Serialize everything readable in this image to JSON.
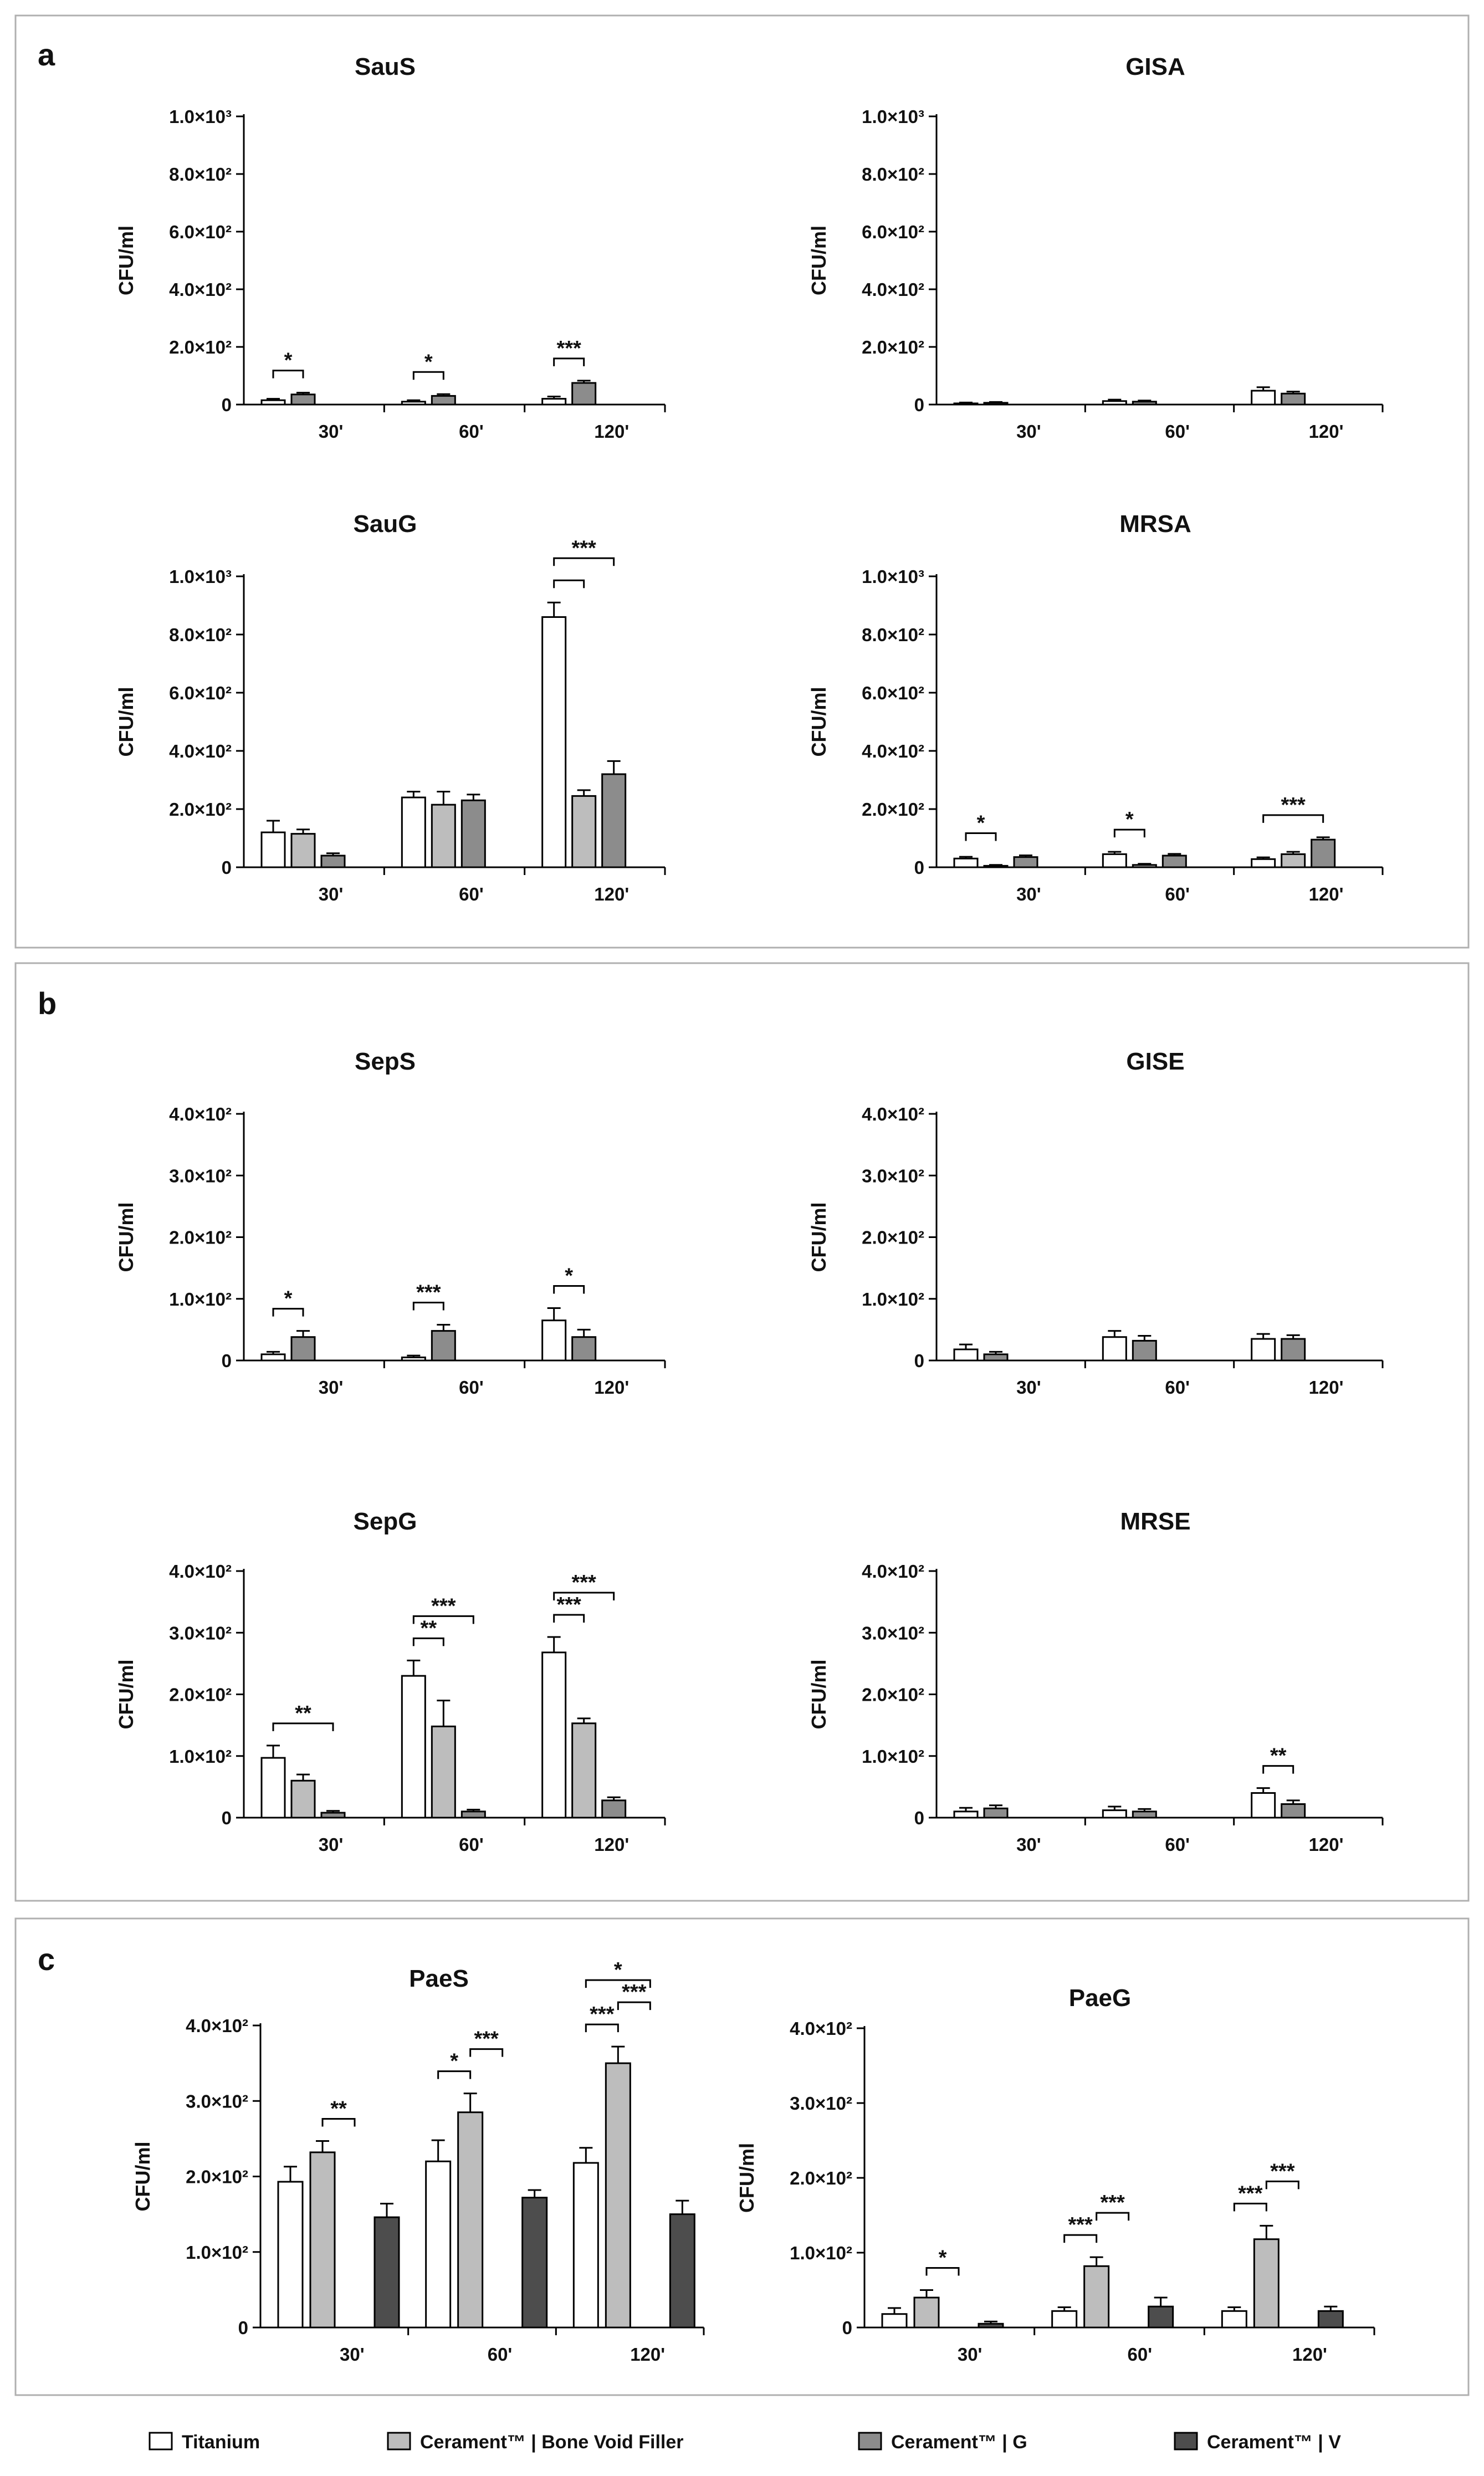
{
  "colors": {
    "titanium": "#ffffff",
    "bone_void_filler": "#bdbdbd",
    "cerament_g": "#8c8c8c",
    "cerament_v": "#4d4d4d"
  },
  "legend": [
    {
      "key": "titanium",
      "label": "Titanium"
    },
    {
      "key": "bone_void_filler",
      "label": "Cerament™ | Bone Void Filler"
    },
    {
      "key": "cerament_g",
      "label": "Cerament™ | G"
    },
    {
      "key": "cerament_v",
      "label": "Cerament™ | V"
    }
  ],
  "panels": [
    {
      "letter": "a"
    },
    {
      "letter": "b"
    },
    {
      "letter": "c"
    }
  ],
  "chart_data": [
    {
      "id": "saus",
      "type": "bar",
      "title": "SauS",
      "ylabel": "CFU/ml",
      "categories": [
        "30'",
        "60'",
        "120'"
      ],
      "ylim": [
        0,
        1000
      ],
      "ytick_labels": [
        "0",
        "2.0×10²",
        "4.0×10²",
        "6.0×10²",
        "8.0×10²",
        "1.0×10³"
      ],
      "series": [
        {
          "name": "Titanium",
          "key": "titanium",
          "values": [
            15,
            10,
            20
          ],
          "errors": [
            5,
            5,
            8
          ]
        },
        {
          "name": "Cerament™ | G",
          "key": "cerament_g",
          "values": [
            35,
            30,
            75
          ],
          "errors": [
            6,
            6,
            8
          ]
        }
      ],
      "significance": [
        {
          "group": 0,
          "from": 0,
          "to": 1,
          "label": "*"
        },
        {
          "group": 1,
          "from": 0,
          "to": 1,
          "label": "*"
        },
        {
          "group": 2,
          "from": 0,
          "to": 1,
          "label": "***"
        }
      ]
    },
    {
      "id": "gisa",
      "type": "bar",
      "title": "GISA",
      "ylabel": "CFU/ml",
      "categories": [
        "30'",
        "60'",
        "120'"
      ],
      "ylim": [
        0,
        1000
      ],
      "ytick_labels": [
        "0",
        "2.0×10²",
        "4.0×10²",
        "6.0×10²",
        "8.0×10²",
        "1.0×10³"
      ],
      "series": [
        {
          "name": "Titanium",
          "key": "titanium",
          "values": [
            4,
            12,
            48
          ],
          "errors": [
            3,
            5,
            12
          ]
        },
        {
          "name": "Cerament™ | G",
          "key": "cerament_g",
          "values": [
            6,
            10,
            38
          ],
          "errors": [
            3,
            4,
            7
          ]
        }
      ],
      "significance": []
    },
    {
      "id": "saug",
      "type": "bar",
      "title": "SauG",
      "ylabel": "CFU/ml",
      "categories": [
        "30'",
        "60'",
        "120'"
      ],
      "ylim": [
        0,
        1000
      ],
      "ytick_labels": [
        "0",
        "2.0×10²",
        "4.0×10²",
        "6.0×10²",
        "8.0×10²",
        "1.0×10³"
      ],
      "series": [
        {
          "name": "Titanium",
          "key": "titanium",
          "values": [
            120,
            240,
            860
          ],
          "errors": [
            40,
            20,
            50
          ]
        },
        {
          "name": "Cerament™ | Bone Void Filler",
          "key": "bone_void_filler",
          "values": [
            115,
            215,
            245
          ],
          "errors": [
            15,
            45,
            20
          ]
        },
        {
          "name": "Cerament™ | G",
          "key": "cerament_g",
          "values": [
            40,
            230,
            320
          ],
          "errors": [
            8,
            20,
            45
          ]
        }
      ],
      "significance": [
        {
          "group": 2,
          "from": 0,
          "to": 1,
          "label": ""
        },
        {
          "group": 2,
          "from": 0,
          "to": 2,
          "label": "***"
        }
      ]
    },
    {
      "id": "mrsa",
      "type": "bar",
      "title": "MRSA",
      "ylabel": "CFU/ml",
      "categories": [
        "30'",
        "60'",
        "120'"
      ],
      "ylim": [
        0,
        1000
      ],
      "ytick_labels": [
        "0",
        "2.0×10²",
        "4.0×10²",
        "6.0×10²",
        "8.0×10²",
        "1.0×10³"
      ],
      "series": [
        {
          "name": "Titanium",
          "key": "titanium",
          "values": [
            30,
            45,
            28
          ],
          "errors": [
            6,
            8,
            6
          ]
        },
        {
          "name": "Cerament™ | Bone Void Filler",
          "key": "bone_void_filler",
          "values": [
            5,
            8,
            45
          ],
          "errors": [
            3,
            4,
            8
          ]
        },
        {
          "name": "Cerament™ | G",
          "key": "cerament_g",
          "values": [
            35,
            40,
            95
          ],
          "errors": [
            6,
            6,
            8
          ]
        }
      ],
      "significance": [
        {
          "group": 0,
          "from": 0,
          "to": 1,
          "label": "*"
        },
        {
          "group": 1,
          "from": 0,
          "to": 1,
          "label": "*"
        },
        {
          "group": 2,
          "from": 0,
          "to": 2,
          "label": "***"
        }
      ]
    },
    {
      "id": "seps",
      "type": "bar",
      "title": "SepS",
      "ylabel": "CFU/ml",
      "categories": [
        "30'",
        "60'",
        "120'"
      ],
      "ylim": [
        0,
        400
      ],
      "ytick_labels": [
        "0",
        "1.0×10²",
        "2.0×10²",
        "3.0×10²",
        "4.0×10²"
      ],
      "series": [
        {
          "name": "Titanium",
          "key": "titanium",
          "values": [
            10,
            5,
            65
          ],
          "errors": [
            4,
            3,
            20
          ]
        },
        {
          "name": "Cerament™ | G",
          "key": "cerament_g",
          "values": [
            38,
            48,
            38
          ],
          "errors": [
            10,
            10,
            12
          ]
        }
      ],
      "significance": [
        {
          "group": 0,
          "from": 0,
          "to": 1,
          "label": "*"
        },
        {
          "group": 1,
          "from": 0,
          "to": 1,
          "label": "***"
        },
        {
          "group": 2,
          "from": 0,
          "to": 1,
          "label": "*"
        }
      ]
    },
    {
      "id": "gise",
      "type": "bar",
      "title": "GISE",
      "ylabel": "CFU/ml",
      "categories": [
        "30'",
        "60'",
        "120'"
      ],
      "ylim": [
        0,
        400
      ],
      "ytick_labels": [
        "0",
        "1.0×10²",
        "2.0×10²",
        "3.0×10²",
        "4.0×10²"
      ],
      "series": [
        {
          "name": "Titanium",
          "key": "titanium",
          "values": [
            18,
            38,
            35
          ],
          "errors": [
            8,
            10,
            8
          ]
        },
        {
          "name": "Cerament™ | G",
          "key": "cerament_g",
          "values": [
            10,
            32,
            35
          ],
          "errors": [
            4,
            8,
            6
          ]
        }
      ],
      "significance": []
    },
    {
      "id": "sepg",
      "type": "bar",
      "title": "SepG",
      "ylabel": "CFU/ml",
      "categories": [
        "30'",
        "60'",
        "120'"
      ],
      "ylim": [
        0,
        400
      ],
      "ytick_labels": [
        "0",
        "1.0×10²",
        "2.0×10²",
        "3.0×10²",
        "4.0×10²"
      ],
      "series": [
        {
          "name": "Titanium",
          "key": "titanium",
          "values": [
            97,
            230,
            268
          ],
          "errors": [
            20,
            25,
            25
          ]
        },
        {
          "name": "Cerament™ | Bone Void Filler",
          "key": "bone_void_filler",
          "values": [
            60,
            148,
            153
          ],
          "errors": [
            10,
            42,
            8
          ]
        },
        {
          "name": "Cerament™ | G",
          "key": "cerament_g",
          "values": [
            8,
            10,
            28
          ],
          "errors": [
            3,
            3,
            5
          ]
        }
      ],
      "significance": [
        {
          "group": 0,
          "from": 0,
          "to": 2,
          "label": "**"
        },
        {
          "group": 1,
          "from": 0,
          "to": 1,
          "label": "**"
        },
        {
          "group": 1,
          "from": 0,
          "to": 2,
          "label": "***"
        },
        {
          "group": 2,
          "from": 0,
          "to": 1,
          "label": "***"
        },
        {
          "group": 2,
          "from": 0,
          "to": 2,
          "label": "***"
        }
      ]
    },
    {
      "id": "mrse",
      "type": "bar",
      "title": "MRSE",
      "ylabel": "CFU/ml",
      "categories": [
        "30'",
        "60'",
        "120'"
      ],
      "ylim": [
        0,
        400
      ],
      "ytick_labels": [
        "0",
        "1.0×10²",
        "2.0×10²",
        "3.0×10²",
        "4.0×10²"
      ],
      "series": [
        {
          "name": "Titanium",
          "key": "titanium",
          "values": [
            10,
            12,
            40
          ],
          "errors": [
            6,
            6,
            8
          ]
        },
        {
          "name": "Cerament™ | G",
          "key": "cerament_g",
          "values": [
            15,
            10,
            22
          ],
          "errors": [
            5,
            4,
            6
          ]
        }
      ],
      "significance": [
        {
          "group": 2,
          "from": 0,
          "to": 1,
          "label": "**"
        }
      ]
    },
    {
      "id": "paes",
      "type": "bar",
      "title": "PaeS",
      "ylabel": "CFU/ml",
      "categories": [
        "30'",
        "60'",
        "120'"
      ],
      "ylim": [
        0,
        400
      ],
      "ytick_labels": [
        "0",
        "1.0×10²",
        "2.0×10²",
        "3.0×10²",
        "4.0×10²"
      ],
      "series": [
        {
          "name": "Titanium",
          "key": "titanium",
          "values": [
            193,
            220,
            218
          ],
          "errors": [
            20,
            28,
            20
          ]
        },
        {
          "name": "Cerament™ | Bone Void Filler",
          "key": "bone_void_filler",
          "values": [
            232,
            285,
            350
          ],
          "errors": [
            15,
            25,
            22
          ]
        },
        {
          "name": "Cerament™ | V",
          "key": "cerament_v",
          "values": [
            146,
            172,
            150
          ],
          "errors": [
            18,
            10,
            18
          ]
        }
      ],
      "significance": [
        {
          "group": 0,
          "from": 1,
          "to": 2,
          "label": "**"
        },
        {
          "group": 1,
          "from": 0,
          "to": 1,
          "label": "*"
        },
        {
          "group": 1,
          "from": 1,
          "to": 2,
          "label": "***"
        },
        {
          "group": 2,
          "from": 0,
          "to": 1,
          "label": "***"
        },
        {
          "group": 2,
          "from": 1,
          "to": 2,
          "label": "***"
        },
        {
          "group": 2,
          "from": 0,
          "to": 2,
          "label": "*"
        }
      ]
    },
    {
      "id": "paeg",
      "type": "bar",
      "title": "PaeG",
      "ylabel": "CFU/ml",
      "categories": [
        "30'",
        "60'",
        "120'"
      ],
      "ylim": [
        0,
        400
      ],
      "ytick_labels": [
        "0",
        "1.0×10²",
        "2.0×10²",
        "3.0×10²",
        "4.0×10²"
      ],
      "series": [
        {
          "name": "Titanium",
          "key": "titanium",
          "values": [
            18,
            22,
            22
          ],
          "errors": [
            8,
            5,
            5
          ]
        },
        {
          "name": "Cerament™ | Bone Void Filler",
          "key": "bone_void_filler",
          "values": [
            40,
            82,
            118
          ],
          "errors": [
            10,
            12,
            18
          ]
        },
        {
          "name": "Cerament™ | V",
          "key": "cerament_v",
          "values": [
            5,
            28,
            22
          ],
          "errors": [
            3,
            12,
            6
          ]
        }
      ],
      "significance": [
        {
          "group": 0,
          "from": 1,
          "to": 2,
          "label": "*"
        },
        {
          "group": 1,
          "from": 0,
          "to": 1,
          "label": "***"
        },
        {
          "group": 1,
          "from": 1,
          "to": 2,
          "label": "***"
        },
        {
          "group": 2,
          "from": 0,
          "to": 1,
          "label": "***"
        },
        {
          "group": 2,
          "from": 1,
          "to": 2,
          "label": "***"
        }
      ]
    }
  ]
}
